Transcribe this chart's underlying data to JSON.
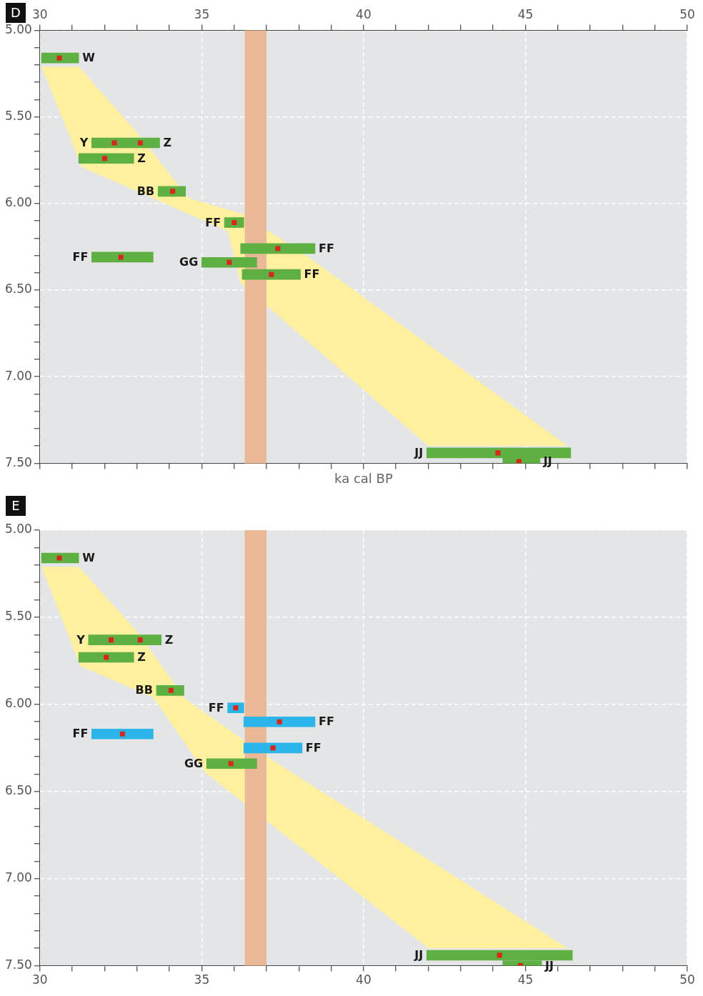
{
  "chart_data": [
    {
      "type": "bar",
      "orientation": "horizontal",
      "title": "D",
      "xlabel": "ka cal BP",
      "xlim": [
        30,
        50
      ],
      "xticks": [
        30,
        {
          "value": 31,
          "label": null
        },
        {
          "value": 32,
          "label": null
        },
        {
          "value": 33,
          "label": null
        },
        {
          "value": 34,
          "label": null
        },
        35,
        {
          "value": 36,
          "label": null
        },
        {
          "value": 37,
          "label": null
        },
        {
          "value": 38,
          "label": null
        },
        {
          "value": 39,
          "label": null
        },
        40,
        {
          "value": 41,
          "label": null
        },
        {
          "value": 42,
          "label": null
        },
        {
          "value": 43,
          "label": null
        },
        {
          "value": 44,
          "label": null
        },
        45,
        {
          "value": 46,
          "label": null
        },
        {
          "value": 47,
          "label": null
        },
        {
          "value": 48,
          "label": null
        },
        {
          "value": 49,
          "label": null
        },
        50
      ],
      "ylim": [
        7.5,
        5
      ],
      "yticks": [
        {
          "value": 5,
          "label": "5.00"
        },
        {
          "value": 5.1,
          "label": null
        },
        {
          "value": 5.2,
          "label": null
        },
        {
          "value": 5.3,
          "label": null
        },
        {
          "value": 5.4,
          "label": null
        },
        {
          "value": 5.5,
          "label": "5.50"
        },
        {
          "value": 5.6,
          "label": null
        },
        {
          "value": 5.7,
          "label": null
        },
        {
          "value": 5.8,
          "label": null
        },
        {
          "value": 5.9,
          "label": null
        },
        {
          "value": 6,
          "label": "6.00"
        },
        {
          "value": 6.1,
          "label": null
        },
        {
          "value": 6.2,
          "label": null
        },
        {
          "value": 6.3,
          "label": null
        },
        {
          "value": 6.4,
          "label": null
        },
        {
          "value": 6.5,
          "label": "6.50"
        },
        {
          "value": 6.6,
          "label": null
        },
        {
          "value": 6.7,
          "label": null
        },
        {
          "value": 6.8,
          "label": null
        },
        {
          "value": 6.9,
          "label": null
        },
        {
          "value": 7,
          "label": "7.00"
        },
        {
          "value": 7.1,
          "label": null
        },
        {
          "value": 7.2,
          "label": null
        },
        {
          "value": 7.3,
          "label": null
        },
        {
          "value": 7.4,
          "label": null
        },
        {
          "value": 7.5,
          "label": "7.50"
        }
      ],
      "grid": true,
      "legend": false,
      "bands": [
        {
          "axis": "x",
          "from": 36.33,
          "to": 37.0,
          "color": "#e9b896"
        }
      ],
      "series": [
        {
          "type": "area",
          "color": "#fff0a0",
          "values": [
            30.05,
            31.3,
            33.5,
            35.8,
            36.2,
            42.0,
            46.3,
            38.3,
            36.25,
            34.6,
            33.0,
            31.2
          ],
          "x": [
            5.21,
            5.79,
            5.97,
            6.16,
            6.46,
            7.4,
            7.4,
            6.31,
            6.06,
            5.97,
            5.59,
            5.21
          ]
        },
        {
          "color": "#5fb043",
          "x": [
            5.16,
            5.65,
            5.74,
            5.93,
            6.11,
            6.26,
            6.31,
            6.34,
            6.41,
            7.44,
            7.49
          ],
          "base": [
            30.05,
            31.6,
            31.2,
            33.65,
            35.7,
            36.2,
            31.6,
            35.0,
            36.25,
            41.95,
            44.3
          ],
          "values": [
            1.15,
            2.1,
            1.7,
            0.85,
            0.6,
            2.3,
            1.9,
            1.7,
            1.8,
            4.45,
            1.15
          ]
        },
        {
          "type": "scatter",
          "color": "#d9261c",
          "marker": "square",
          "values": [
            30.6,
            32.3,
            33.1,
            32.0,
            34.1,
            36.0,
            37.35,
            32.5,
            35.85,
            37.15,
            44.15,
            44.8
          ],
          "x": [
            5.16,
            5.65,
            5.65,
            5.74,
            5.93,
            6.11,
            6.26,
            6.31,
            6.34,
            6.41,
            7.44,
            7.49
          ]
        }
      ],
      "annotations": [
        {
          "text": "W",
          "x": 31.2,
          "y": 5.16
        },
        {
          "text": "Y",
          "x": 31.6,
          "y": 5.65
        },
        {
          "text": "Z",
          "x": 33.7,
          "y": 5.65
        },
        {
          "text": "Z",
          "x": 32.9,
          "y": 5.74
        },
        {
          "text": "BB",
          "x": 33.65,
          "y": 5.93
        },
        {
          "text": "FF",
          "x": 35.7,
          "y": 6.11
        },
        {
          "text": "FF",
          "x": 38.5,
          "y": 6.26
        },
        {
          "text": "FF",
          "x": 31.6,
          "y": 6.31
        },
        {
          "text": "GG",
          "x": 35.0,
          "y": 6.34
        },
        {
          "text": "FF",
          "x": 38.05,
          "y": 6.41
        },
        {
          "text": "JJ",
          "x": 41.95,
          "y": 7.44
        },
        {
          "text": "JJ",
          "x": 45.45,
          "y": 7.49
        }
      ]
    },
    {
      "type": "bar",
      "orientation": "horizontal",
      "title": "E",
      "xlim": [
        30,
        50
      ],
      "xticks": [
        30,
        {
          "value": 31,
          "label": null
        },
        {
          "value": 32,
          "label": null
        },
        {
          "value": 33,
          "label": null
        },
        {
          "value": 34,
          "label": null
        },
        35,
        {
          "value": 36,
          "label": null
        },
        {
          "value": 37,
          "label": null
        },
        {
          "value": 38,
          "label": null
        },
        {
          "value": 39,
          "label": null
        },
        40,
        {
          "value": 41,
          "label": null
        },
        {
          "value": 42,
          "label": null
        },
        {
          "value": 43,
          "label": null
        },
        {
          "value": 44,
          "label": null
        },
        45,
        {
          "value": 46,
          "label": null
        },
        {
          "value": 47,
          "label": null
        },
        {
          "value": 48,
          "label": null
        },
        {
          "value": 49,
          "label": null
        },
        50
      ],
      "ylim": [
        7.5,
        5
      ],
      "yticks": [
        {
          "value": 5,
          "label": "5.00"
        },
        {
          "value": 5.1,
          "label": null
        },
        {
          "value": 5.2,
          "label": null
        },
        {
          "value": 5.3,
          "label": null
        },
        {
          "value": 5.4,
          "label": null
        },
        {
          "value": 5.5,
          "label": "5.50"
        },
        {
          "value": 5.6,
          "label": null
        },
        {
          "value": 5.7,
          "label": null
        },
        {
          "value": 5.8,
          "label": null
        },
        {
          "value": 5.9,
          "label": null
        },
        {
          "value": 6,
          "label": "6.00"
        },
        {
          "value": 6.1,
          "label": null
        },
        {
          "value": 6.2,
          "label": null
        },
        {
          "value": 6.3,
          "label": null
        },
        {
          "value": 6.4,
          "label": null
        },
        {
          "value": 6.5,
          "label": "6.50"
        },
        {
          "value": 6.6,
          "label": null
        },
        {
          "value": 6.7,
          "label": null
        },
        {
          "value": 6.8,
          "label": null
        },
        {
          "value": 6.9,
          "label": null
        },
        {
          "value": 7,
          "label": "7.00"
        },
        {
          "value": 7.1,
          "label": null
        },
        {
          "value": 7.2,
          "label": null
        },
        {
          "value": 7.3,
          "label": null
        },
        {
          "value": 7.4,
          "label": null
        },
        {
          "value": 7.5,
          "label": "7.50"
        }
      ],
      "grid": true,
      "legend": false,
      "bands": [
        {
          "axis": "x",
          "from": 36.33,
          "to": 37.0,
          "color": "#e9b896"
        }
      ],
      "series": [
        {
          "type": "area",
          "color": "#fff0a0",
          "values": [
            30.05,
            31.25,
            33.5,
            35.1,
            42.0,
            46.3,
            37.1,
            34.5,
            33.0,
            31.2
          ],
          "x": [
            5.21,
            5.78,
            5.96,
            6.39,
            7.4,
            7.4,
            6.31,
            5.97,
            5.58,
            5.21
          ]
        },
        {
          "color": "#5fb043",
          "x": [
            5.16,
            5.63,
            5.73,
            5.92,
            6.34,
            7.44,
            7.5
          ],
          "base": [
            30.05,
            31.5,
            31.2,
            33.6,
            35.15,
            41.95,
            44.3
          ],
          "values": [
            1.15,
            2.25,
            1.7,
            0.85,
            1.55,
            4.5,
            1.2
          ]
        },
        {
          "color": "#2bb5e8",
          "x": [
            6.02,
            6.1,
            6.17,
            6.25
          ],
          "base": [
            35.8,
            36.3,
            31.6,
            36.3
          ],
          "values": [
            0.5,
            2.2,
            1.9,
            1.8
          ]
        },
        {
          "type": "scatter",
          "color": "#d9261c",
          "marker": "square",
          "values": [
            30.6,
            32.2,
            33.1,
            32.05,
            34.05,
            35.9,
            44.2,
            44.85,
            36.05,
            37.4,
            32.55,
            37.2
          ],
          "x": [
            5.16,
            5.63,
            5.63,
            5.73,
            5.92,
            6.34,
            7.44,
            7.5,
            6.02,
            6.1,
            6.17,
            6.25
          ]
        }
      ],
      "annotations": [
        {
          "text": "W",
          "x": 31.2,
          "y": 5.16
        },
        {
          "text": "Y",
          "x": 31.5,
          "y": 5.63
        },
        {
          "text": "Z",
          "x": 33.75,
          "y": 5.63
        },
        {
          "text": "Z",
          "x": 32.9,
          "y": 5.73
        },
        {
          "text": "BB",
          "x": 33.6,
          "y": 5.92
        },
        {
          "text": "FF",
          "x": 35.8,
          "y": 6.02
        },
        {
          "text": "FF",
          "x": 38.5,
          "y": 6.1
        },
        {
          "text": "FF",
          "x": 31.6,
          "y": 6.17
        },
        {
          "text": "FF",
          "x": 38.1,
          "y": 6.25
        },
        {
          "text": "GG",
          "x": 35.15,
          "y": 6.34
        },
        {
          "text": "JJ",
          "x": 41.95,
          "y": 7.44
        },
        {
          "text": "JJ",
          "x": 45.5,
          "y": 7.5
        }
      ]
    }
  ]
}
